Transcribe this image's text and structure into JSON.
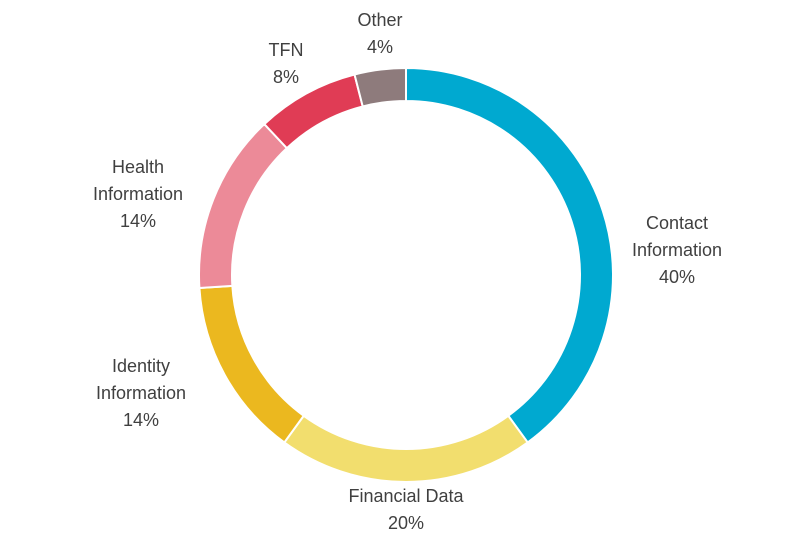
{
  "chart_data": {
    "type": "pie",
    "title": "",
    "series": [
      {
        "name": "Contact Information",
        "label_lines": [
          "Contact",
          "Information"
        ],
        "value": 40,
        "pct_label": "40%",
        "color": "#00a9d0"
      },
      {
        "name": "Financial Data",
        "label_lines": [
          "Financial Data"
        ],
        "value": 20,
        "pct_label": "20%",
        "color": "#f2de6e"
      },
      {
        "name": "Identity Information",
        "label_lines": [
          "Identity",
          "Information"
        ],
        "value": 14,
        "pct_label": "14%",
        "color": "#ebb81f"
      },
      {
        "name": "Health Information",
        "label_lines": [
          "Health",
          "Information"
        ],
        "value": 14,
        "pct_label": "14%",
        "color": "#ec8a98"
      },
      {
        "name": "TFN",
        "label_lines": [
          "TFN"
        ],
        "value": 8,
        "pct_label": "8%",
        "color": "#e03c55"
      },
      {
        "name": "Other",
        "label_lines": [
          "Other"
        ],
        "value": 4,
        "pct_label": "4%",
        "color": "#8e7b7c"
      }
    ],
    "legend": "none",
    "donut": true
  }
}
